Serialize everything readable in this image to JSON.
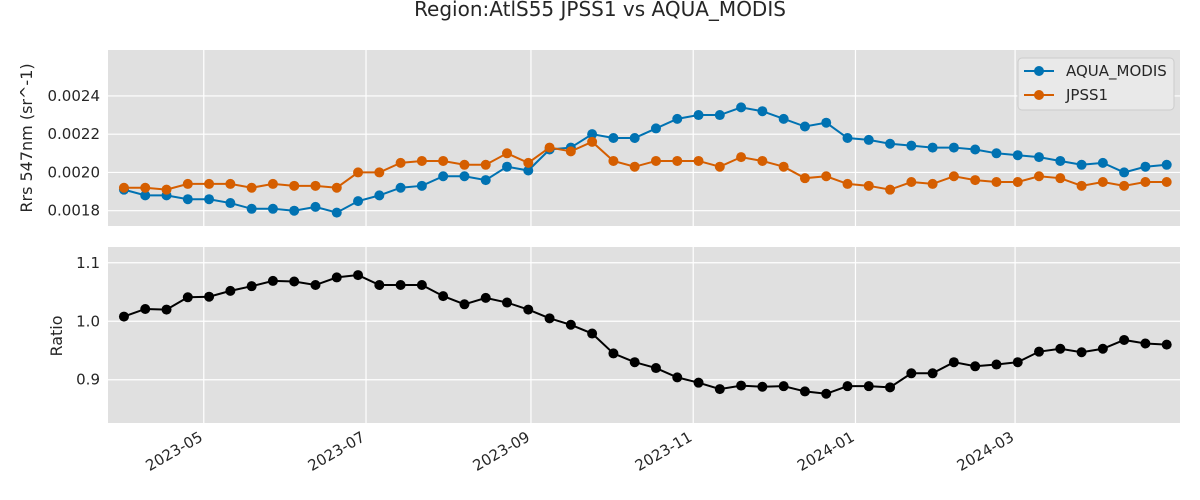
{
  "title": "Region:AtlS55 JPSS1 vs AQUA_MODIS",
  "chart_data": [
    {
      "type": "line",
      "ylabel": "Rrs 547nm (sr^-1)",
      "xlabel": "",
      "ylim": [
        0.00172,
        0.00264
      ],
      "yticks": [
        "0.0018",
        "0.0020",
        "0.0022",
        "0.0024"
      ],
      "grid": true,
      "legend": "top-right",
      "x": [
        "2023-04-01",
        "2023-04-09",
        "2023-04-17",
        "2023-04-25",
        "2023-05-03",
        "2023-05-11",
        "2023-05-19",
        "2023-05-27",
        "2023-06-04",
        "2023-06-12",
        "2023-06-20",
        "2023-06-28",
        "2023-07-06",
        "2023-07-14",
        "2023-07-22",
        "2023-07-30",
        "2023-08-07",
        "2023-08-15",
        "2023-08-23",
        "2023-08-31",
        "2023-09-08",
        "2023-09-16",
        "2023-09-24",
        "2023-10-02",
        "2023-10-10",
        "2023-10-18",
        "2023-10-26",
        "2023-11-03",
        "2023-11-11",
        "2023-11-19",
        "2023-11-27",
        "2023-12-05",
        "2023-12-13",
        "2023-12-21",
        "2023-12-29",
        "2024-01-06",
        "2024-01-14",
        "2024-01-22",
        "2024-01-30",
        "2024-02-07",
        "2024-02-15",
        "2024-02-23",
        "2024-03-02",
        "2024-03-10",
        "2024-03-18",
        "2024-03-26",
        "2024-04-03",
        "2024-04-11",
        "2024-04-19",
        "2024-04-27"
      ],
      "series": [
        {
          "name": "AQUA_MODIS",
          "color": "#0072b2",
          "values": [
            0.00191,
            0.00188,
            0.00188,
            0.00186,
            0.00186,
            0.00184,
            0.00181,
            0.00181,
            0.0018,
            0.00182,
            0.00179,
            0.00185,
            0.00188,
            0.00192,
            0.00193,
            0.00198,
            0.00198,
            0.00196,
            0.00203,
            0.00201,
            0.00212,
            0.00213,
            0.0022,
            0.00218,
            0.00218,
            0.00223,
            0.00228,
            0.0023,
            0.0023,
            0.00234,
            0.00232,
            0.00228,
            0.00224,
            0.00226,
            0.00218,
            0.00217,
            0.00215,
            0.00214,
            0.00213,
            0.00213,
            0.00212,
            0.0021,
            0.00209,
            0.00208,
            0.00206,
            0.00204,
            0.00205,
            0.002,
            0.00203,
            0.00204
          ]
        },
        {
          "name": "JPSS1",
          "color": "#d55e00",
          "values": [
            0.00192,
            0.00192,
            0.00191,
            0.00194,
            0.00194,
            0.00194,
            0.00192,
            0.00194,
            0.00193,
            0.00193,
            0.00192,
            0.002,
            0.002,
            0.00205,
            0.00206,
            0.00206,
            0.00204,
            0.00204,
            0.0021,
            0.00205,
            0.00213,
            0.00211,
            0.00216,
            0.00206,
            0.00203,
            0.00206,
            0.00206,
            0.00206,
            0.00203,
            0.00208,
            0.00206,
            0.00203,
            0.00197,
            0.00198,
            0.00194,
            0.00193,
            0.00191,
            0.00195,
            0.00194,
            0.00198,
            0.00196,
            0.00195,
            0.00195,
            0.00198,
            0.00197,
            0.00193,
            0.00195,
            0.00193,
            0.00195,
            0.00195
          ]
        }
      ]
    },
    {
      "type": "line",
      "ylabel": "Ratio",
      "xlabel": "",
      "ylim": [
        0.826,
        1.127
      ],
      "yticks": [
        "0.9",
        "1.0",
        "1.1"
      ],
      "xticks": [
        "2023-05",
        "2023-07",
        "2023-09",
        "2023-11",
        "2024-01",
        "2024-03"
      ],
      "grid": true,
      "series": [
        {
          "name": "",
          "color": "#000000",
          "values": [
            1.008,
            1.021,
            1.02,
            1.041,
            1.042,
            1.052,
            1.06,
            1.069,
            1.068,
            1.062,
            1.075,
            1.079,
            1.062,
            1.062,
            1.062,
            1.043,
            1.029,
            1.04,
            1.032,
            1.02,
            1.005,
            0.994,
            0.979,
            0.945,
            0.93,
            0.92,
            0.904,
            0.895,
            0.884,
            0.89,
            0.888,
            0.889,
            0.88,
            0.876,
            0.889,
            0.889,
            0.887,
            0.911,
            0.911,
            0.93,
            0.923,
            0.926,
            0.93,
            0.948,
            0.953,
            0.947,
            0.953,
            0.968,
            0.962,
            0.96
          ]
        }
      ]
    }
  ]
}
